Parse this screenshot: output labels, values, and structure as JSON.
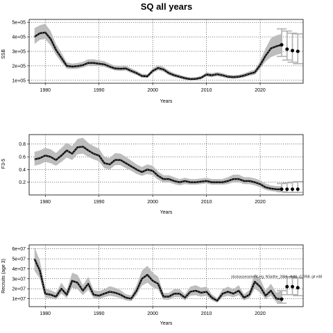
{
  "title": "SQ all years",
  "watermark": "stockassessment.org, NSaithe_2024, dk88, r17958, git e38",
  "colors": {
    "band": "#bdbdbd",
    "line": "#000000",
    "stripe": "#7a7a7a",
    "errorbar": "#b0b0b0",
    "grid": "#000000"
  },
  "chart_data": [
    {
      "type": "line",
      "name": "ssb",
      "ylabel": "SSB",
      "xlabel": "Years",
      "xlim": [
        1977,
        2028
      ],
      "ylim": [
        80000,
        520000
      ],
      "xticks": [
        1980,
        1990,
        2000,
        2010,
        2020
      ],
      "yticks": [
        100000,
        200000,
        300000,
        400000,
        500000
      ],
      "ytick_labels": [
        "1e+05",
        "2e+05",
        "3e+05",
        "4e+05",
        "5e+05"
      ],
      "grid": true,
      "x": [
        1978,
        1979,
        1980,
        1981,
        1982,
        1983,
        1984,
        1985,
        1986,
        1987,
        1988,
        1989,
        1990,
        1991,
        1992,
        1993,
        1994,
        1995,
        1996,
        1997,
        1998,
        1999,
        2000,
        2001,
        2002,
        2003,
        2004,
        2005,
        2006,
        2007,
        2008,
        2009,
        2010,
        2011,
        2012,
        2013,
        2014,
        2015,
        2016,
        2017,
        2018,
        2019,
        2020,
        2021,
        2022,
        2023,
        2024
      ],
      "estimate": [
        400000,
        425000,
        430000,
        385000,
        310000,
        255000,
        200000,
        195000,
        198000,
        205000,
        220000,
        220000,
        215000,
        210000,
        195000,
        182000,
        180000,
        182000,
        165000,
        150000,
        130000,
        128000,
        165000,
        185000,
        175000,
        150000,
        135000,
        125000,
        115000,
        108000,
        110000,
        118000,
        140000,
        135000,
        142000,
        135000,
        125000,
        122000,
        125000,
        133000,
        145000,
        155000,
        205000,
        270000,
        320000,
        335000,
        345000
      ],
      "lower": [
        350000,
        380000,
        385000,
        340000,
        275000,
        225000,
        180000,
        178000,
        180000,
        188000,
        200000,
        200000,
        198000,
        193000,
        180000,
        168000,
        165000,
        167000,
        150000,
        137000,
        118000,
        116000,
        150000,
        170000,
        160000,
        136000,
        122000,
        113000,
        104000,
        98000,
        100000,
        107000,
        127000,
        122000,
        129000,
        122000,
        113000,
        110000,
        113000,
        120000,
        131000,
        139000,
        180000,
        230000,
        260000,
        275000,
        285000
      ],
      "upper": [
        460000,
        480000,
        490000,
        440000,
        350000,
        290000,
        225000,
        215000,
        220000,
        228000,
        245000,
        245000,
        238000,
        232000,
        215000,
        200000,
        197000,
        200000,
        183000,
        166000,
        145000,
        142000,
        182000,
        205000,
        193000,
        167000,
        150000,
        139000,
        128000,
        120000,
        122000,
        130000,
        155000,
        150000,
        157000,
        150000,
        139000,
        136000,
        139000,
        148000,
        162000,
        174000,
        235000,
        320000,
        390000,
        410000,
        420000
      ],
      "forecast": {
        "x": [
          2024,
          2025,
          2026,
          2027
        ],
        "values": [
          345000,
          315000,
          305000,
          300000
        ],
        "lower": [
          265000,
          240000,
          225000,
          215000
        ],
        "upper": [
          455000,
          440000,
          425000,
          420000
        ]
      }
    },
    {
      "type": "line",
      "name": "fbar",
      "ylabel": "F3-5",
      "xlabel": "Years",
      "xlim": [
        1977,
        2028
      ],
      "ylim": [
        0,
        0.95
      ],
      "xticks": [
        1980,
        1990,
        2000,
        2010,
        2020
      ],
      "yticks": [
        0.2,
        0.4,
        0.6,
        0.8
      ],
      "ytick_labels": [
        "0.2",
        "0.4",
        "0.6",
        "0.8"
      ],
      "grid": true,
      "x": [
        1978,
        1979,
        1980,
        1981,
        1982,
        1983,
        1984,
        1985,
        1986,
        1987,
        1988,
        1989,
        1990,
        1991,
        1992,
        1993,
        1994,
        1995,
        1996,
        1997,
        1998,
        1999,
        2000,
        2001,
        2002,
        2003,
        2004,
        2005,
        2006,
        2007,
        2008,
        2009,
        2010,
        2011,
        2012,
        2013,
        2014,
        2015,
        2016,
        2017,
        2018,
        2019,
        2020,
        2021,
        2022,
        2023,
        2024
      ],
      "estimate": [
        0.56,
        0.58,
        0.62,
        0.6,
        0.55,
        0.62,
        0.7,
        0.65,
        0.75,
        0.76,
        0.7,
        0.65,
        0.62,
        0.5,
        0.48,
        0.55,
        0.55,
        0.5,
        0.45,
        0.4,
        0.36,
        0.4,
        0.38,
        0.3,
        0.25,
        0.25,
        0.22,
        0.2,
        0.22,
        0.2,
        0.2,
        0.21,
        0.22,
        0.2,
        0.2,
        0.2,
        0.22,
        0.25,
        0.25,
        0.22,
        0.22,
        0.2,
        0.17,
        0.12,
        0.1,
        0.09,
        0.09
      ],
      "lower": [
        0.46,
        0.48,
        0.52,
        0.5,
        0.46,
        0.52,
        0.59,
        0.55,
        0.64,
        0.65,
        0.6,
        0.56,
        0.53,
        0.42,
        0.4,
        0.47,
        0.47,
        0.42,
        0.38,
        0.33,
        0.3,
        0.33,
        0.31,
        0.24,
        0.2,
        0.2,
        0.17,
        0.15,
        0.17,
        0.16,
        0.16,
        0.17,
        0.18,
        0.16,
        0.16,
        0.16,
        0.17,
        0.2,
        0.2,
        0.17,
        0.17,
        0.15,
        0.12,
        0.08,
        0.06,
        0.05,
        0.05
      ],
      "upper": [
        0.68,
        0.7,
        0.74,
        0.72,
        0.66,
        0.74,
        0.82,
        0.77,
        0.88,
        0.9,
        0.82,
        0.77,
        0.73,
        0.6,
        0.58,
        0.66,
        0.65,
        0.6,
        0.54,
        0.48,
        0.44,
        0.48,
        0.46,
        0.37,
        0.31,
        0.31,
        0.28,
        0.25,
        0.27,
        0.25,
        0.25,
        0.26,
        0.27,
        0.25,
        0.25,
        0.25,
        0.28,
        0.32,
        0.32,
        0.28,
        0.28,
        0.26,
        0.23,
        0.18,
        0.15,
        0.14,
        0.14
      ],
      "forecast": {
        "x": [
          2024,
          2025,
          2026,
          2027
        ],
        "values": [
          0.09,
          0.09,
          0.09,
          0.09
        ],
        "lower": [
          0.05,
          0.04,
          0.04,
          0.04
        ],
        "upper": [
          0.18,
          0.19,
          0.2,
          0.21
        ]
      }
    },
    {
      "type": "line",
      "name": "recruits",
      "ylabel": "Recruits (age 3)",
      "xlabel": "Years",
      "xlim": [
        1977,
        2028
      ],
      "ylim": [
        2000000,
        64000000
      ],
      "xticks": [
        1980,
        1990,
        2000,
        2010,
        2020
      ],
      "yticks": [
        10000000,
        20000000,
        30000000,
        40000000,
        50000000,
        60000000
      ],
      "ytick_labels": [
        "1e+07",
        "2e+07",
        "3e+07",
        "4e+07",
        "5e+07",
        "6e+07"
      ],
      "grid": true,
      "x": [
        1978,
        1979,
        1980,
        1981,
        1982,
        1983,
        1984,
        1985,
        1986,
        1987,
        1988,
        1989,
        1990,
        1991,
        1992,
        1993,
        1994,
        1995,
        1996,
        1997,
        1998,
        1999,
        2000,
        2001,
        2002,
        2003,
        2004,
        2005,
        2006,
        2007,
        2008,
        2009,
        2010,
        2011,
        2012,
        2013,
        2014,
        2015,
        2016,
        2017,
        2018,
        2019,
        2020,
        2021,
        2022,
        2023,
        2024
      ],
      "estimate": [
        50000000,
        38000000,
        15000000,
        14000000,
        12000000,
        20000000,
        14000000,
        28000000,
        26000000,
        18000000,
        25000000,
        14000000,
        13000000,
        15000000,
        17000000,
        16000000,
        14000000,
        11000000,
        10000000,
        18000000,
        30000000,
        34000000,
        28000000,
        25000000,
        12000000,
        12000000,
        15000000,
        15000000,
        11000000,
        17000000,
        18000000,
        16000000,
        17000000,
        11000000,
        8000000,
        15000000,
        17000000,
        15000000,
        18000000,
        11000000,
        14000000,
        27000000,
        22000000,
        13000000,
        18000000,
        10000000,
        9500000
      ],
      "lower": [
        38000000,
        30000000,
        11000000,
        10500000,
        9000000,
        15000000,
        10500000,
        21000000,
        19500000,
        13500000,
        19000000,
        10500000,
        9800000,
        11500000,
        13000000,
        12000000,
        10500000,
        8300000,
        7500000,
        13500000,
        23000000,
        26000000,
        21500000,
        19000000,
        9000000,
        9000000,
        11500000,
        11500000,
        8300000,
        13000000,
        13500000,
        12000000,
        13000000,
        8300000,
        6000000,
        11500000,
        13000000,
        11500000,
        13500000,
        8200000,
        10500000,
        20000000,
        16000000,
        9500000,
        13000000,
        6500000,
        5500000
      ],
      "upper": [
        62000000,
        48000000,
        20000000,
        18500000,
        16000000,
        26000000,
        18500000,
        36000000,
        34000000,
        23500000,
        32000000,
        18500000,
        17500000,
        19500000,
        22500000,
        21000000,
        18500000,
        14500000,
        13300000,
        23500000,
        38000000,
        43000000,
        36000000,
        32000000,
        15700000,
        15700000,
        19500000,
        19500000,
        14500000,
        22000000,
        23500000,
        21000000,
        22000000,
        14500000,
        10500000,
        19500000,
        22000000,
        19500000,
        23500000,
        14500000,
        18500000,
        35000000,
        30000000,
        18000000,
        25000000,
        16000000,
        18000000
      ],
      "forecast": {
        "x": [
          2024,
          2025,
          2026,
          2027
        ],
        "values": [
          9500000,
          22000000,
          22000000,
          21000000
        ],
        "lower": [
          5500000,
          14000000,
          14000000,
          13000000
        ],
        "upper": [
          18000000,
          32000000,
          32000000,
          31000000
        ]
      }
    }
  ]
}
